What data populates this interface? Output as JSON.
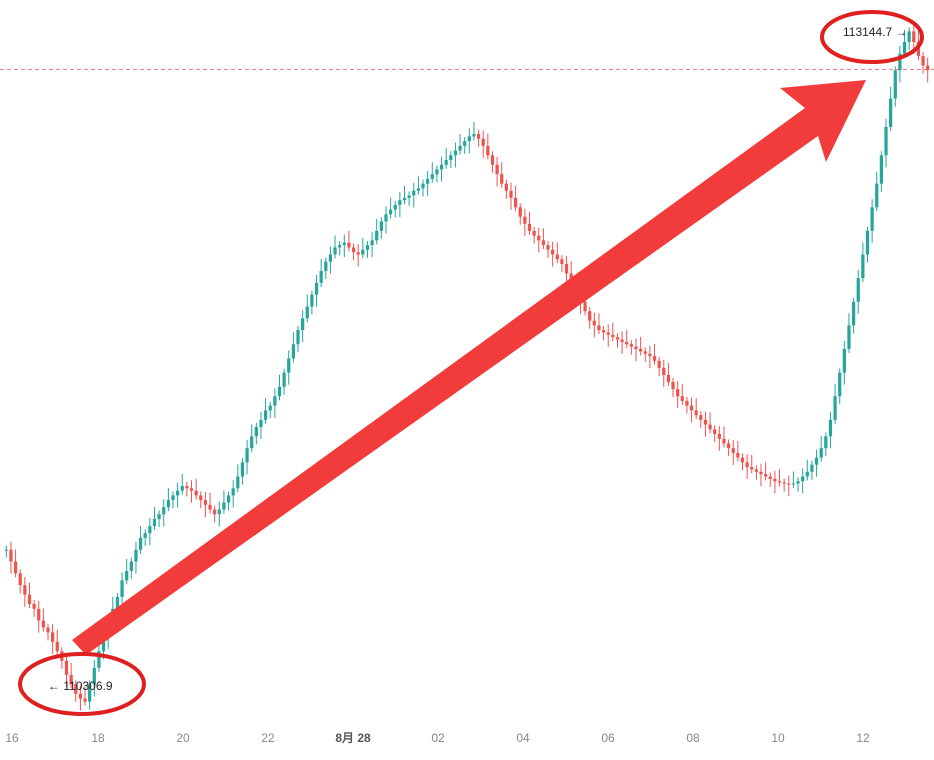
{
  "chart_data": {
    "type": "candlestick",
    "x_tick_labels": [
      "16",
      "18",
      "20",
      "22",
      "8月 28",
      "02",
      "04",
      "06",
      "08",
      "10",
      "12"
    ],
    "series": [
      {
        "values_approx_close": [
          110950,
          110900,
          110850,
          110800,
          110760,
          110720,
          110700,
          110650,
          110620,
          110600,
          110560,
          110520,
          110480,
          110420,
          110380,
          110340,
          110320,
          110306.9,
          110380,
          110450,
          110520,
          110580,
          110640,
          110700,
          110750,
          110820,
          110860,
          110900,
          110950,
          111000,
          111020,
          111050,
          111080,
          111100,
          111130,
          111160,
          111180,
          111200,
          111220,
          111210,
          111200,
          111180,
          111160,
          111140,
          111120,
          111100,
          111120,
          111150,
          111180,
          111210,
          111260,
          111320,
          111380,
          111430,
          111470,
          111500,
          111540,
          111560,
          111600,
          111640,
          111700,
          111760,
          111820,
          111880,
          111930,
          111980,
          112030,
          112080,
          112130,
          112170,
          112200,
          112230,
          112240,
          112250,
          112230,
          112210,
          112200,
          112220,
          112240,
          112260,
          112300,
          112340,
          112370,
          112390,
          112410,
          112430,
          112440,
          112450,
          112470,
          112480,
          112500,
          112520,
          112540,
          112560,
          112580,
          112600,
          112620,
          112640,
          112660,
          112680,
          112700,
          112710,
          112690,
          112660,
          112620,
          112580,
          112540,
          112500,
          112470,
          112440,
          112400,
          112360,
          112330,
          112300,
          112280,
          112260,
          112240,
          112220,
          112200,
          112180,
          112160,
          112120,
          112080,
          112040,
          112000,
          111960,
          111920,
          111900,
          111880,
          111870,
          111860,
          111850,
          111840,
          111830,
          111820,
          111810,
          111800,
          111790,
          111780,
          111770,
          111750,
          111720,
          111690,
          111660,
          111630,
          111600,
          111580,
          111560,
          111540,
          111520,
          111500,
          111480,
          111460,
          111440,
          111420,
          111400,
          111380,
          111360,
          111340,
          111320,
          111300,
          111290,
          111280,
          111270,
          111260,
          111250,
          111240,
          111235,
          111230,
          111228,
          111230,
          111240,
          111260,
          111280,
          111310,
          111340,
          111380,
          111430,
          111500,
          111600,
          111700,
          111800,
          111900,
          112000,
          112100,
          112200,
          112300,
          112400,
          112500,
          112620,
          112740,
          112860,
          112980,
          113050,
          113100,
          113144.7,
          113100,
          113040,
          113000,
          112980
        ]
      }
    ],
    "annotations": [
      {
        "text": "110306.9",
        "value": 110306.9,
        "arrow": "left"
      },
      {
        "text": "113144.7",
        "value": 113144.7,
        "arrow": "right"
      }
    ]
  }
}
